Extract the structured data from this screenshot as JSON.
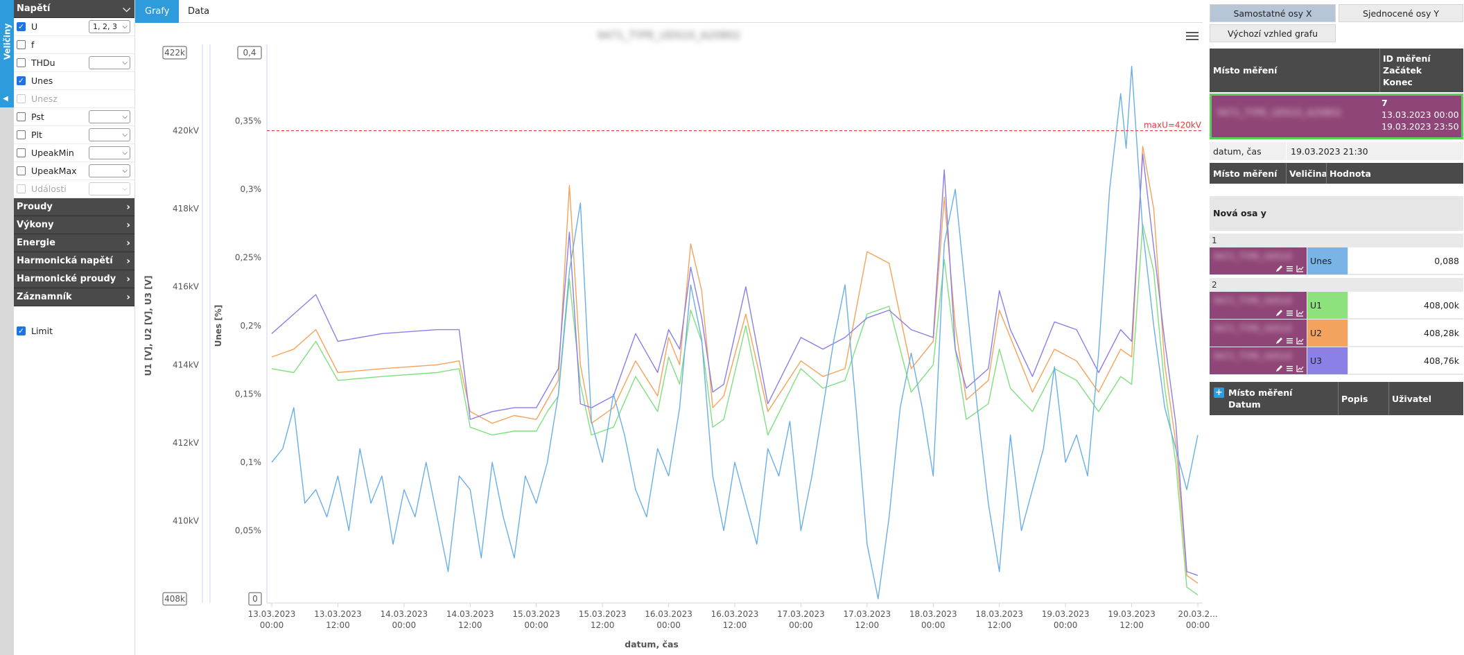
{
  "vtab": {
    "label": "Veličiny"
  },
  "sidebar": {
    "napeti": {
      "title": "Napětí",
      "rows": [
        {
          "label": "U",
          "checked": true,
          "disabled": false,
          "select": "1, 2, 3"
        },
        {
          "label": "f",
          "checked": false,
          "disabled": false,
          "select": null
        },
        {
          "label": "THDu",
          "checked": false,
          "disabled": false,
          "select": ""
        },
        {
          "label": "Unes",
          "checked": true,
          "disabled": false,
          "select": null
        },
        {
          "label": "Unesz",
          "checked": false,
          "disabled": true,
          "select": null
        },
        {
          "label": "Pst",
          "checked": false,
          "disabled": false,
          "select": ""
        },
        {
          "label": "Plt",
          "checked": false,
          "disabled": false,
          "select": ""
        },
        {
          "label": "UpeakMin",
          "checked": false,
          "disabled": false,
          "select": ""
        },
        {
          "label": "UpeakMax",
          "checked": false,
          "disabled": false,
          "select": ""
        },
        {
          "label": "Události",
          "checked": false,
          "disabled": true,
          "select": ""
        }
      ]
    },
    "sections": [
      "Proudy",
      "Výkony",
      "Energie",
      "Harmonická napětí",
      "Harmonické proudy",
      "Záznamník"
    ],
    "limit": {
      "label": "Limit",
      "checked": true
    }
  },
  "tabs": {
    "grafy": "Grafy",
    "data": "Data"
  },
  "chart": {
    "title": "9471_TYPE_UDS10_A20802"
  },
  "chart_data": {
    "type": "line",
    "xlabel": "datum, čas",
    "ylabel_left": "U1 [V], U2 [V], U3 [V]",
    "ylabel_right": "Unes [%]",
    "x_ticks": [
      [
        "13.03.2023",
        "00:00"
      ],
      [
        "13.03.2023",
        "12:00"
      ],
      [
        "14.03.2023",
        "00:00"
      ],
      [
        "14.03.2023",
        "12:00"
      ],
      [
        "15.03.2023",
        "00:00"
      ],
      [
        "15.03.2023",
        "12:00"
      ],
      [
        "16.03.2023",
        "00:00"
      ],
      [
        "16.03.2023",
        "12:00"
      ],
      [
        "17.03.2023",
        "00:00"
      ],
      [
        "17.03.2023",
        "12:00"
      ],
      [
        "18.03.2023",
        "00:00"
      ],
      [
        "18.03.2023",
        "12:00"
      ],
      [
        "19.03.2023",
        "00:00"
      ],
      [
        "19.03.2023",
        "12:00"
      ],
      [
        "20.03.2...",
        "00:00"
      ]
    ],
    "x_range_hours": [
      0,
      168
    ],
    "y_left": {
      "ticks": [
        "410kV",
        "412kV",
        "414kV",
        "416kV",
        "418kV",
        "420kV"
      ],
      "min": 408,
      "max": 422,
      "min_label": "408k",
      "max_label": "422k"
    },
    "y_right": {
      "ticks": [
        "0,05%",
        "0,1%",
        "0,15%",
        "0,2%",
        "0,25%",
        "0,3%",
        "0,35%"
      ],
      "min": 0,
      "max": 0.4,
      "min_label": "0",
      "max_label": "0,4"
    },
    "limit_line": {
      "label": "maxU=420kV",
      "value": 420,
      "color": "#e8363a"
    },
    "series": [
      {
        "name": "U1",
        "axis": "left",
        "color": "#7ee07e",
        "points": [
          [
            0,
            413.9
          ],
          [
            4,
            413.8
          ],
          [
            8,
            414.6
          ],
          [
            12,
            413.6
          ],
          [
            20,
            413.7
          ],
          [
            30,
            413.8
          ],
          [
            34,
            413.9
          ],
          [
            36,
            412.4
          ],
          [
            40,
            412.2
          ],
          [
            44,
            412.3
          ],
          [
            48,
            412.3
          ],
          [
            50,
            412.8
          ],
          [
            52,
            413.2
          ],
          [
            54,
            416.2
          ],
          [
            56,
            413.5
          ],
          [
            58,
            412.2
          ],
          [
            62,
            412.4
          ],
          [
            66,
            413.7
          ],
          [
            70,
            412.8
          ],
          [
            72,
            414.2
          ],
          [
            74,
            413.5
          ],
          [
            76,
            415.4
          ],
          [
            78,
            414.6
          ],
          [
            80,
            412.4
          ],
          [
            82,
            412.6
          ],
          [
            86,
            415.0
          ],
          [
            90,
            412.2
          ],
          [
            96,
            413.9
          ],
          [
            100,
            413.4
          ],
          [
            104,
            413.6
          ],
          [
            108,
            415.3
          ],
          [
            112,
            415.5
          ],
          [
            116,
            413.3
          ],
          [
            120,
            414.0
          ],
          [
            122,
            416.7
          ],
          [
            124,
            414.4
          ],
          [
            126,
            412.6
          ],
          [
            130,
            413.0
          ],
          [
            132,
            414.4
          ],
          [
            134,
            413.4
          ],
          [
            138,
            412.8
          ],
          [
            142,
            413.9
          ],
          [
            146,
            413.6
          ],
          [
            150,
            412.8
          ],
          [
            154,
            413.7
          ],
          [
            156,
            413.5
          ],
          [
            158,
            417.6
          ],
          [
            160,
            416.4
          ],
          [
            162,
            413.4
          ],
          [
            164,
            411.5
          ],
          [
            166,
            408.3
          ],
          [
            168,
            408.1
          ]
        ]
      },
      {
        "name": "U2",
        "axis": "left",
        "color": "#f5a25a",
        "points": [
          [
            0,
            414.2
          ],
          [
            4,
            414.4
          ],
          [
            8,
            414.9
          ],
          [
            12,
            413.8
          ],
          [
            20,
            413.9
          ],
          [
            30,
            414.0
          ],
          [
            34,
            414.1
          ],
          [
            36,
            412.8
          ],
          [
            40,
            412.5
          ],
          [
            44,
            412.7
          ],
          [
            48,
            412.6
          ],
          [
            50,
            413.1
          ],
          [
            52,
            413.6
          ],
          [
            54,
            418.6
          ],
          [
            56,
            414.0
          ],
          [
            58,
            412.5
          ],
          [
            62,
            412.9
          ],
          [
            66,
            414.1
          ],
          [
            70,
            413.2
          ],
          [
            72,
            414.7
          ],
          [
            74,
            414.0
          ],
          [
            76,
            417.1
          ],
          [
            78,
            415.9
          ],
          [
            80,
            412.9
          ],
          [
            82,
            413.2
          ],
          [
            86,
            415.3
          ],
          [
            90,
            412.8
          ],
          [
            96,
            414.1
          ],
          [
            100,
            413.7
          ],
          [
            104,
            413.9
          ],
          [
            108,
            416.9
          ],
          [
            112,
            416.6
          ],
          [
            116,
            413.9
          ],
          [
            120,
            414.6
          ],
          [
            122,
            418.3
          ],
          [
            124,
            415.0
          ],
          [
            126,
            413.1
          ],
          [
            130,
            413.6
          ],
          [
            132,
            415.4
          ],
          [
            134,
            414.7
          ],
          [
            138,
            413.3
          ],
          [
            142,
            414.4
          ],
          [
            146,
            414.1
          ],
          [
            150,
            413.3
          ],
          [
            154,
            414.4
          ],
          [
            156,
            414.2
          ],
          [
            158,
            419.6
          ],
          [
            160,
            418.0
          ],
          [
            162,
            414.0
          ],
          [
            164,
            412.0
          ],
          [
            166,
            408.6
          ],
          [
            168,
            408.4
          ]
        ]
      },
      {
        "name": "U3",
        "axis": "left",
        "color": "#8b7ee8",
        "points": [
          [
            0,
            414.8
          ],
          [
            4,
            415.3
          ],
          [
            8,
            415.8
          ],
          [
            12,
            414.6
          ],
          [
            20,
            414.8
          ],
          [
            30,
            414.9
          ],
          [
            34,
            414.9
          ],
          [
            36,
            412.6
          ],
          [
            40,
            412.8
          ],
          [
            44,
            412.9
          ],
          [
            48,
            412.9
          ],
          [
            50,
            413.4
          ],
          [
            52,
            413.9
          ],
          [
            54,
            417.4
          ],
          [
            56,
            413.0
          ],
          [
            58,
            412.9
          ],
          [
            62,
            413.2
          ],
          [
            66,
            414.8
          ],
          [
            70,
            413.8
          ],
          [
            72,
            414.9
          ],
          [
            74,
            414.4
          ],
          [
            76,
            416.5
          ],
          [
            78,
            415.2
          ],
          [
            80,
            413.3
          ],
          [
            82,
            413.5
          ],
          [
            86,
            416.0
          ],
          [
            90,
            413.0
          ],
          [
            96,
            414.7
          ],
          [
            100,
            414.4
          ],
          [
            104,
            414.7
          ],
          [
            108,
            415.2
          ],
          [
            112,
            415.4
          ],
          [
            116,
            414.9
          ],
          [
            120,
            414.7
          ],
          [
            122,
            419.0
          ],
          [
            124,
            414.4
          ],
          [
            126,
            413.4
          ],
          [
            130,
            413.9
          ],
          [
            132,
            415.9
          ],
          [
            134,
            414.9
          ],
          [
            138,
            413.7
          ],
          [
            142,
            415.1
          ],
          [
            146,
            414.9
          ],
          [
            150,
            413.8
          ],
          [
            154,
            414.9
          ],
          [
            156,
            414.6
          ],
          [
            158,
            419.4
          ],
          [
            160,
            417.0
          ],
          [
            162,
            414.6
          ],
          [
            164,
            412.5
          ],
          [
            166,
            408.7
          ],
          [
            168,
            408.6
          ]
        ]
      },
      {
        "name": "Unes",
        "axis": "right",
        "color": "#6aaee8",
        "points": [
          [
            0,
            0.1
          ],
          [
            2,
            0.11
          ],
          [
            4,
            0.14
          ],
          [
            6,
            0.07
          ],
          [
            8,
            0.08
          ],
          [
            10,
            0.06
          ],
          [
            12,
            0.09
          ],
          [
            14,
            0.05
          ],
          [
            16,
            0.11
          ],
          [
            18,
            0.07
          ],
          [
            20,
            0.09
          ],
          [
            22,
            0.04
          ],
          [
            24,
            0.08
          ],
          [
            26,
            0.06
          ],
          [
            28,
            0.1
          ],
          [
            30,
            0.06
          ],
          [
            32,
            0.02
          ],
          [
            34,
            0.09
          ],
          [
            36,
            0.08
          ],
          [
            38,
            0.03
          ],
          [
            40,
            0.1
          ],
          [
            42,
            0.06
          ],
          [
            44,
            0.03
          ],
          [
            46,
            0.09
          ],
          [
            48,
            0.07
          ],
          [
            50,
            0.1
          ],
          [
            52,
            0.15
          ],
          [
            54,
            0.24
          ],
          [
            56,
            0.29
          ],
          [
            58,
            0.13
          ],
          [
            60,
            0.1
          ],
          [
            62,
            0.15
          ],
          [
            64,
            0.12
          ],
          [
            66,
            0.08
          ],
          [
            68,
            0.06
          ],
          [
            70,
            0.11
          ],
          [
            72,
            0.09
          ],
          [
            74,
            0.14
          ],
          [
            76,
            0.23
          ],
          [
            78,
            0.19
          ],
          [
            80,
            0.09
          ],
          [
            82,
            0.05
          ],
          [
            84,
            0.1
          ],
          [
            86,
            0.07
          ],
          [
            88,
            0.04
          ],
          [
            90,
            0.11
          ],
          [
            92,
            0.09
          ],
          [
            94,
            0.13
          ],
          [
            96,
            0.05
          ],
          [
            98,
            0.09
          ],
          [
            100,
            0.14
          ],
          [
            102,
            0.19
          ],
          [
            104,
            0.23
          ],
          [
            106,
            0.14
          ],
          [
            108,
            0.04
          ],
          [
            110,
            0.0
          ],
          [
            112,
            0.06
          ],
          [
            114,
            0.14
          ],
          [
            116,
            0.18
          ],
          [
            118,
            0.14
          ],
          [
            120,
            0.09
          ],
          [
            122,
            0.26
          ],
          [
            124,
            0.3
          ],
          [
            126,
            0.22
          ],
          [
            128,
            0.14
          ],
          [
            130,
            0.07
          ],
          [
            132,
            0.02
          ],
          [
            134,
            0.12
          ],
          [
            136,
            0.05
          ],
          [
            138,
            0.08
          ],
          [
            140,
            0.11
          ],
          [
            142,
            0.17
          ],
          [
            144,
            0.1
          ],
          [
            146,
            0.12
          ],
          [
            148,
            0.09
          ],
          [
            150,
            0.18
          ],
          [
            152,
            0.3
          ],
          [
            154,
            0.37
          ],
          [
            155,
            0.33
          ],
          [
            156,
            0.39
          ],
          [
            158,
            0.27
          ],
          [
            160,
            0.2
          ],
          [
            162,
            0.14
          ],
          [
            164,
            0.11
          ],
          [
            166,
            0.08
          ],
          [
            168,
            0.12
          ]
        ]
      }
    ]
  },
  "right": {
    "btn_separate": "Samostatné osy X",
    "btn_unified": "Sjednocené osy Y",
    "btn_default": "Výchozí vzhled grafu",
    "meas_head": {
      "place": "Místo měření",
      "id": "ID měření",
      "start": "Začátek",
      "end": "Konec"
    },
    "meas_row": {
      "place": "9471_TYPE_UDS10_A20802",
      "id": "7",
      "start": "13.03.2023 00:00",
      "end": "19.03.2023 23:50"
    },
    "datetime": {
      "label": "datum, čas",
      "value": "19.03.2023 21:30"
    },
    "val_head": {
      "place": "Místo měření",
      "qty": "Veličina",
      "value": "Hodnota"
    },
    "new_axis": "Nová osa y",
    "groups": [
      {
        "num": "1",
        "rows": [
          {
            "place": "9471_TYPE_UDS10",
            "qty": "Unes",
            "color": "#7ab3e6",
            "value": "0,088"
          }
        ]
      },
      {
        "num": "2",
        "rows": [
          {
            "place": "9471_TYPE_UDS10",
            "qty": "U1",
            "color": "#8ee27e",
            "value": "408,00k"
          },
          {
            "place": "9471_TYPE_UDS10",
            "qty": "U2",
            "color": "#f3a35e",
            "value": "408,28k"
          },
          {
            "place": "9471_TYPE_UDS10",
            "qty": "U3",
            "color": "#8a80e6",
            "value": "408,76k"
          }
        ]
      }
    ],
    "foot_head": {
      "place": "Místo měření",
      "date": "Datum",
      "desc": "Popis",
      "user": "Uživatel"
    }
  }
}
